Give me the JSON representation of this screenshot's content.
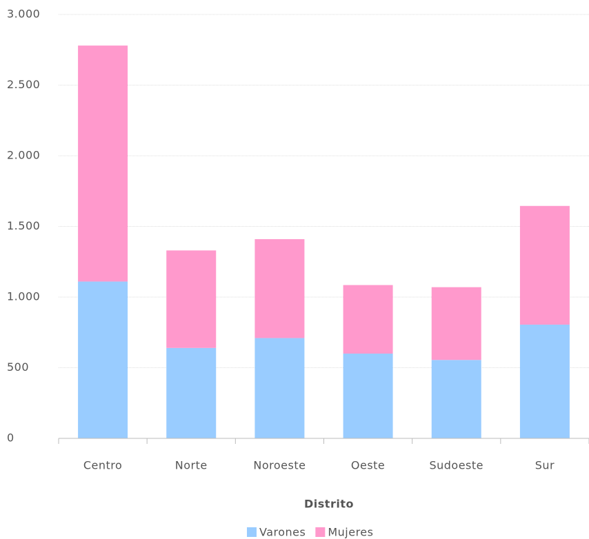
{
  "chart_data": {
    "type": "stacked_bar",
    "x_label": "Distrito",
    "categories": [
      "Centro",
      "Norte",
      "Noroeste",
      "Oeste",
      "Sudoeste",
      "Sur"
    ],
    "series": [
      {
        "name": "Varones",
        "color": "#99ccff",
        "values": [
          1110,
          640,
          710,
          600,
          555,
          805
        ]
      },
      {
        "name": "Mujeres",
        "color": "#ff99cc",
        "values": [
          1670,
          690,
          700,
          485,
          515,
          840
        ]
      }
    ],
    "ylim": [
      0,
      3000
    ],
    "yticks": [
      0,
      500,
      {
        "value": 1000,
        "label": "1.000"
      },
      {
        "value": 1500,
        "label": "1.500"
      },
      {
        "value": 2000,
        "label": "2.000"
      },
      {
        "value": 2500,
        "label": "2.500"
      },
      {
        "value": 3000,
        "label": "3.000"
      }
    ],
    "grid": true,
    "legend": "bottom"
  }
}
